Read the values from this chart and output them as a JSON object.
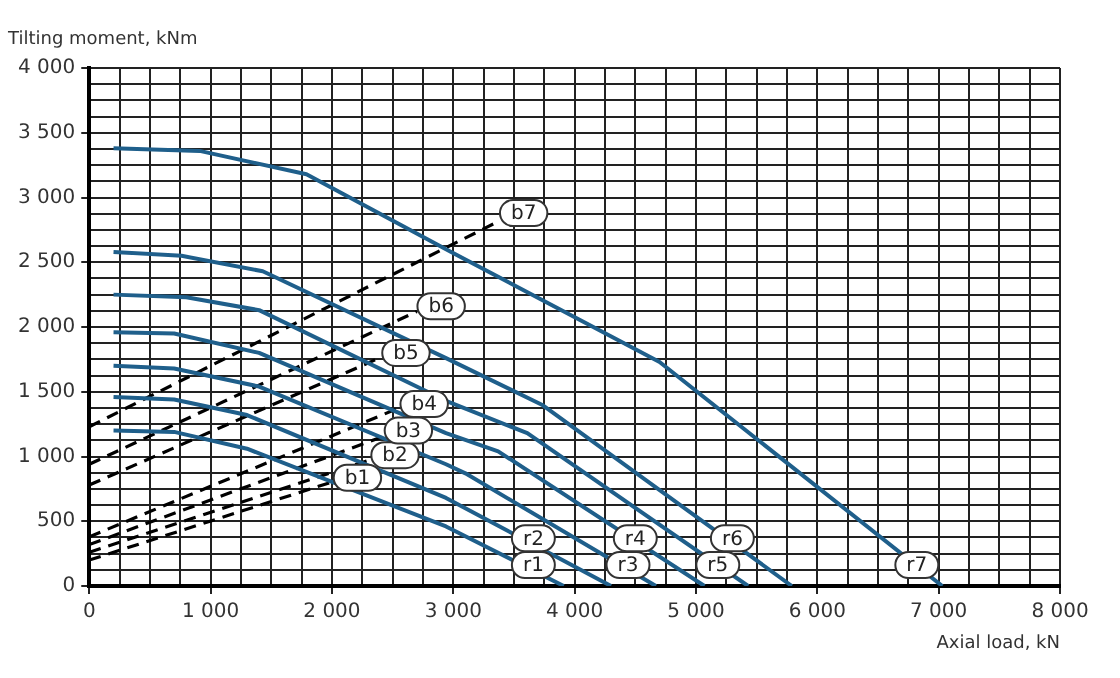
{
  "chart_data": {
    "type": "line",
    "xlabel": "Axial load, kN",
    "ylabel": "Tilting moment, kNm",
    "grid": true,
    "marker": "none",
    "xlim": [
      0,
      8000
    ],
    "ylim": [
      0,
      4000
    ],
    "xticks": [
      0,
      {
        "value": 250,
        "label": null
      },
      {
        "value": 500,
        "label": null
      },
      {
        "value": 750,
        "label": null
      },
      {
        "value": 1000,
        "label": "1 000"
      },
      {
        "value": 1250,
        "label": null
      },
      {
        "value": 1500,
        "label": null
      },
      {
        "value": 1750,
        "label": null
      },
      {
        "value": 2000,
        "label": "2 000"
      },
      {
        "value": 2250,
        "label": null
      },
      {
        "value": 2500,
        "label": null
      },
      {
        "value": 2750,
        "label": null
      },
      {
        "value": 3000,
        "label": "3 000"
      },
      {
        "value": 3250,
        "label": null
      },
      {
        "value": 3500,
        "label": null
      },
      {
        "value": 3750,
        "label": null
      },
      {
        "value": 4000,
        "label": "4 000"
      },
      {
        "value": 4250,
        "label": null
      },
      {
        "value": 4500,
        "label": null
      },
      {
        "value": 4750,
        "label": null
      },
      {
        "value": 5000,
        "label": "5 000"
      },
      {
        "value": 5250,
        "label": null
      },
      {
        "value": 5500,
        "label": null
      },
      {
        "value": 5750,
        "label": null
      },
      {
        "value": 6000,
        "label": "6 000"
      },
      {
        "value": 6250,
        "label": null
      },
      {
        "value": 6500,
        "label": null
      },
      {
        "value": 6750,
        "label": null
      },
      {
        "value": 7000,
        "label": "7 000"
      },
      {
        "value": 7250,
        "label": null
      },
      {
        "value": 7500,
        "label": null
      },
      {
        "value": 7750,
        "label": null
      },
      {
        "value": 8000,
        "label": "8 000"
      }
    ],
    "yticks": [
      0,
      {
        "value": 125,
        "label": null
      },
      {
        "value": 250,
        "label": null
      },
      {
        "value": 375,
        "label": null
      },
      500,
      {
        "value": 625,
        "label": null
      },
      {
        "value": 750,
        "label": null
      },
      {
        "value": 875,
        "label": null
      },
      {
        "value": 1000,
        "label": "1 000"
      },
      {
        "value": 1125,
        "label": null
      },
      {
        "value": 1250,
        "label": null
      },
      {
        "value": 1375,
        "label": null
      },
      {
        "value": 1500,
        "label": "1 500"
      },
      {
        "value": 1625,
        "label": null
      },
      {
        "value": 1750,
        "label": null
      },
      {
        "value": 1875,
        "label": null
      },
      {
        "value": 2000,
        "label": "2 000"
      },
      {
        "value": 2125,
        "label": null
      },
      {
        "value": 2250,
        "label": null
      },
      {
        "value": 2375,
        "label": null
      },
      {
        "value": 2500,
        "label": "2 500"
      },
      {
        "value": 2625,
        "label": null
      },
      {
        "value": 2750,
        "label": null
      },
      {
        "value": 2875,
        "label": null
      },
      {
        "value": 3000,
        "label": "3 000"
      },
      {
        "value": 3125,
        "label": null
      },
      {
        "value": 3250,
        "label": null
      },
      {
        "value": 3375,
        "label": null
      },
      {
        "value": 3500,
        "label": "3 500"
      },
      {
        "value": 3625,
        "label": null
      },
      {
        "value": 3750,
        "label": null
      },
      {
        "value": 3875,
        "label": null
      },
      {
        "value": 4000,
        "label": "4 000"
      }
    ],
    "series": [
      {
        "color": "#1f5f8b",
        "line_style": "solid",
        "x": [
          200,
          700,
          1300,
          2940,
          3910
        ],
        "values": [
          1200,
          1190,
          1060,
          460,
          0
        ]
      },
      {
        "color": "#1f5f8b",
        "line_style": "solid",
        "x": [
          200,
          700,
          1300,
          2940,
          4300
        ],
        "values": [
          1460,
          1440,
          1320,
          680,
          0
        ]
      },
      {
        "color": "#1f5f8b",
        "line_style": "solid",
        "x": [
          200,
          700,
          1400,
          2940,
          3100,
          4670
        ],
        "values": [
          1700,
          1680,
          1540,
          940,
          870,
          0
        ]
      },
      {
        "color": "#1f5f8b",
        "line_style": "solid",
        "x": [
          200,
          700,
          1400,
          2940,
          3370,
          5070
        ],
        "values": [
          1960,
          1950,
          1800,
          1180,
          1040,
          0
        ]
      },
      {
        "color": "#1f5f8b",
        "line_style": "solid",
        "x": [
          200,
          800,
          1400,
          2940,
          3610,
          5430
        ],
        "values": [
          2250,
          2230,
          2130,
          1430,
          1180,
          0
        ]
      },
      {
        "color": "#1f5f8b",
        "line_style": "solid",
        "x": [
          200,
          760,
          1430,
          2940,
          3730,
          5790
        ],
        "values": [
          2580,
          2550,
          2430,
          1760,
          1400,
          0
        ]
      },
      {
        "color": "#1f5f8b",
        "line_style": "solid",
        "x": [
          200,
          910,
          1790,
          2940,
          4700,
          7030
        ],
        "values": [
          3380,
          3360,
          3180,
          2600,
          1730,
          0
        ]
      },
      {
        "color": "#000000",
        "line_style": "dashed",
        "x": [
          0,
          1990
        ],
        "values": [
          200,
          800
        ]
      },
      {
        "color": "#000000",
        "line_style": "dashed",
        "x": [
          0,
          2300
        ],
        "values": [
          260,
          970
        ]
      },
      {
        "color": "#000000",
        "line_style": "dashed",
        "x": [
          0,
          2410
        ],
        "values": [
          320,
          1150
        ]
      },
      {
        "color": "#000000",
        "line_style": "dashed",
        "x": [
          0,
          2540
        ],
        "values": [
          380,
          1370
        ]
      },
      {
        "color": "#000000",
        "line_style": "dashed",
        "x": [
          0,
          2390
        ],
        "values": [
          780,
          1760
        ]
      },
      {
        "color": "#000000",
        "line_style": "dashed",
        "x": [
          0,
          2700
        ],
        "values": [
          940,
          2120
        ]
      },
      {
        "color": "#000000",
        "line_style": "dashed",
        "x": [
          0,
          3360
        ],
        "values": [
          1230,
          2810
        ]
      }
    ],
    "annotations": [
      {
        "text": "r1",
        "x": 3660,
        "y": 162
      },
      {
        "text": "r2",
        "x": 3660,
        "y": 368
      },
      {
        "text": "r3",
        "x": 4440,
        "y": 162
      },
      {
        "text": "r4",
        "x": 4500,
        "y": 368
      },
      {
        "text": "r5",
        "x": 5180,
        "y": 162
      },
      {
        "text": "r6",
        "x": 5300,
        "y": 368
      },
      {
        "text": "r7",
        "x": 6820,
        "y": 162
      },
      {
        "text": "b1",
        "x": 2210,
        "y": 836
      },
      {
        "text": "b2",
        "x": 2520,
        "y": 1010
      },
      {
        "text": "b3",
        "x": 2630,
        "y": 1200
      },
      {
        "text": "b4",
        "x": 2760,
        "y": 1405
      },
      {
        "text": "b5",
        "x": 2610,
        "y": 1800
      },
      {
        "text": "b6",
        "x": 2900,
        "y": 2160
      },
      {
        "text": "b7",
        "x": 3580,
        "y": 2880
      }
    ]
  }
}
